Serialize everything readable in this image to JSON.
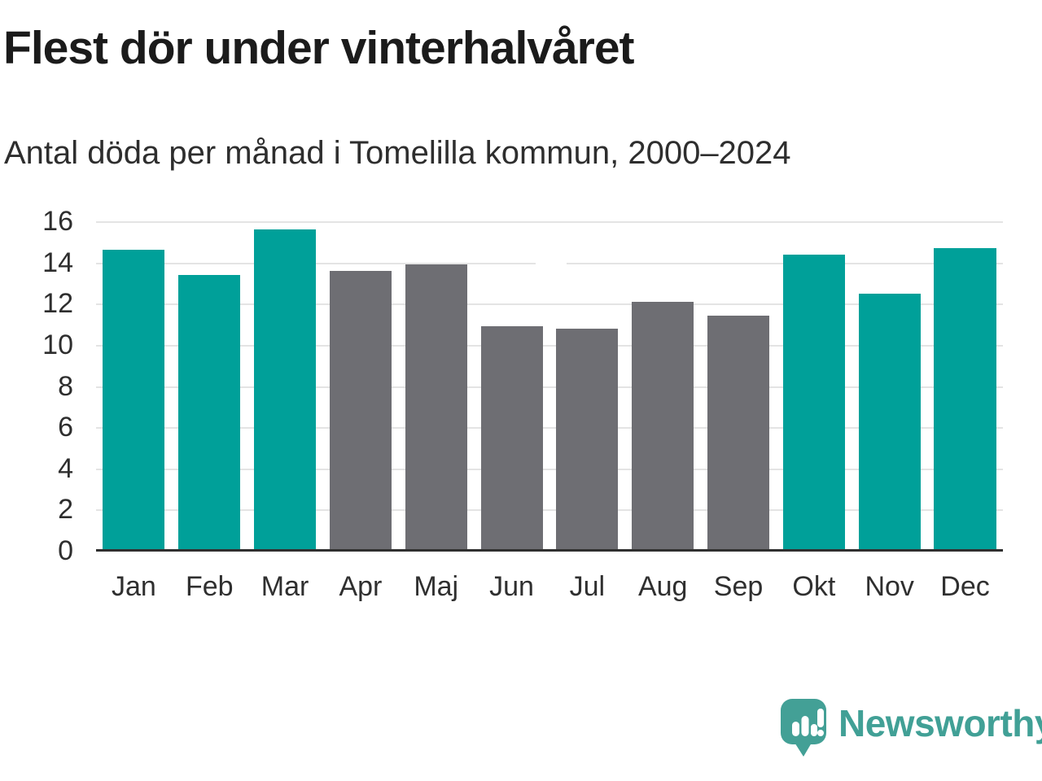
{
  "header": {
    "title": "Flest dör under vinterhalvåret",
    "subtitle": "Antal döda per månad i Tomelilla kommun, 2000–2024"
  },
  "chart_data": {
    "type": "bar",
    "categories": [
      "Jan",
      "Feb",
      "Mar",
      "Apr",
      "Maj",
      "Jun",
      "Jul",
      "Aug",
      "Sep",
      "Okt",
      "Nov",
      "Dec"
    ],
    "values": [
      14.6,
      13.4,
      15.6,
      13.6,
      13.9,
      10.9,
      10.8,
      12.1,
      11.4,
      14.4,
      12.5,
      14.7
    ],
    "groups": [
      "winter",
      "winter",
      "winter",
      "summer",
      "summer",
      "summer",
      "summer",
      "summer",
      "summer",
      "winter",
      "winter",
      "winter"
    ],
    "title": "Flest dör under vinterhalvåret",
    "subtitle": "Antal döda per månad i Tomelilla kommun, 2000–2024",
    "xlabel": "",
    "ylabel": "",
    "ylim": [
      0,
      16
    ],
    "yticks": [
      0,
      2,
      4,
      6,
      8,
      10,
      12,
      14,
      16
    ],
    "grid": true,
    "legend": false,
    "colors": {
      "winter": "#00a099",
      "summer": "#6e6e73"
    },
    "gridline_color": "#e4e4e4",
    "axis_color": "#2f2f2f"
  },
  "footer": {
    "brand": "Newsworthy",
    "brand_color": "#41a096",
    "logo_icon": "newsworthy-speech-bubble-bar-chart-icon"
  }
}
